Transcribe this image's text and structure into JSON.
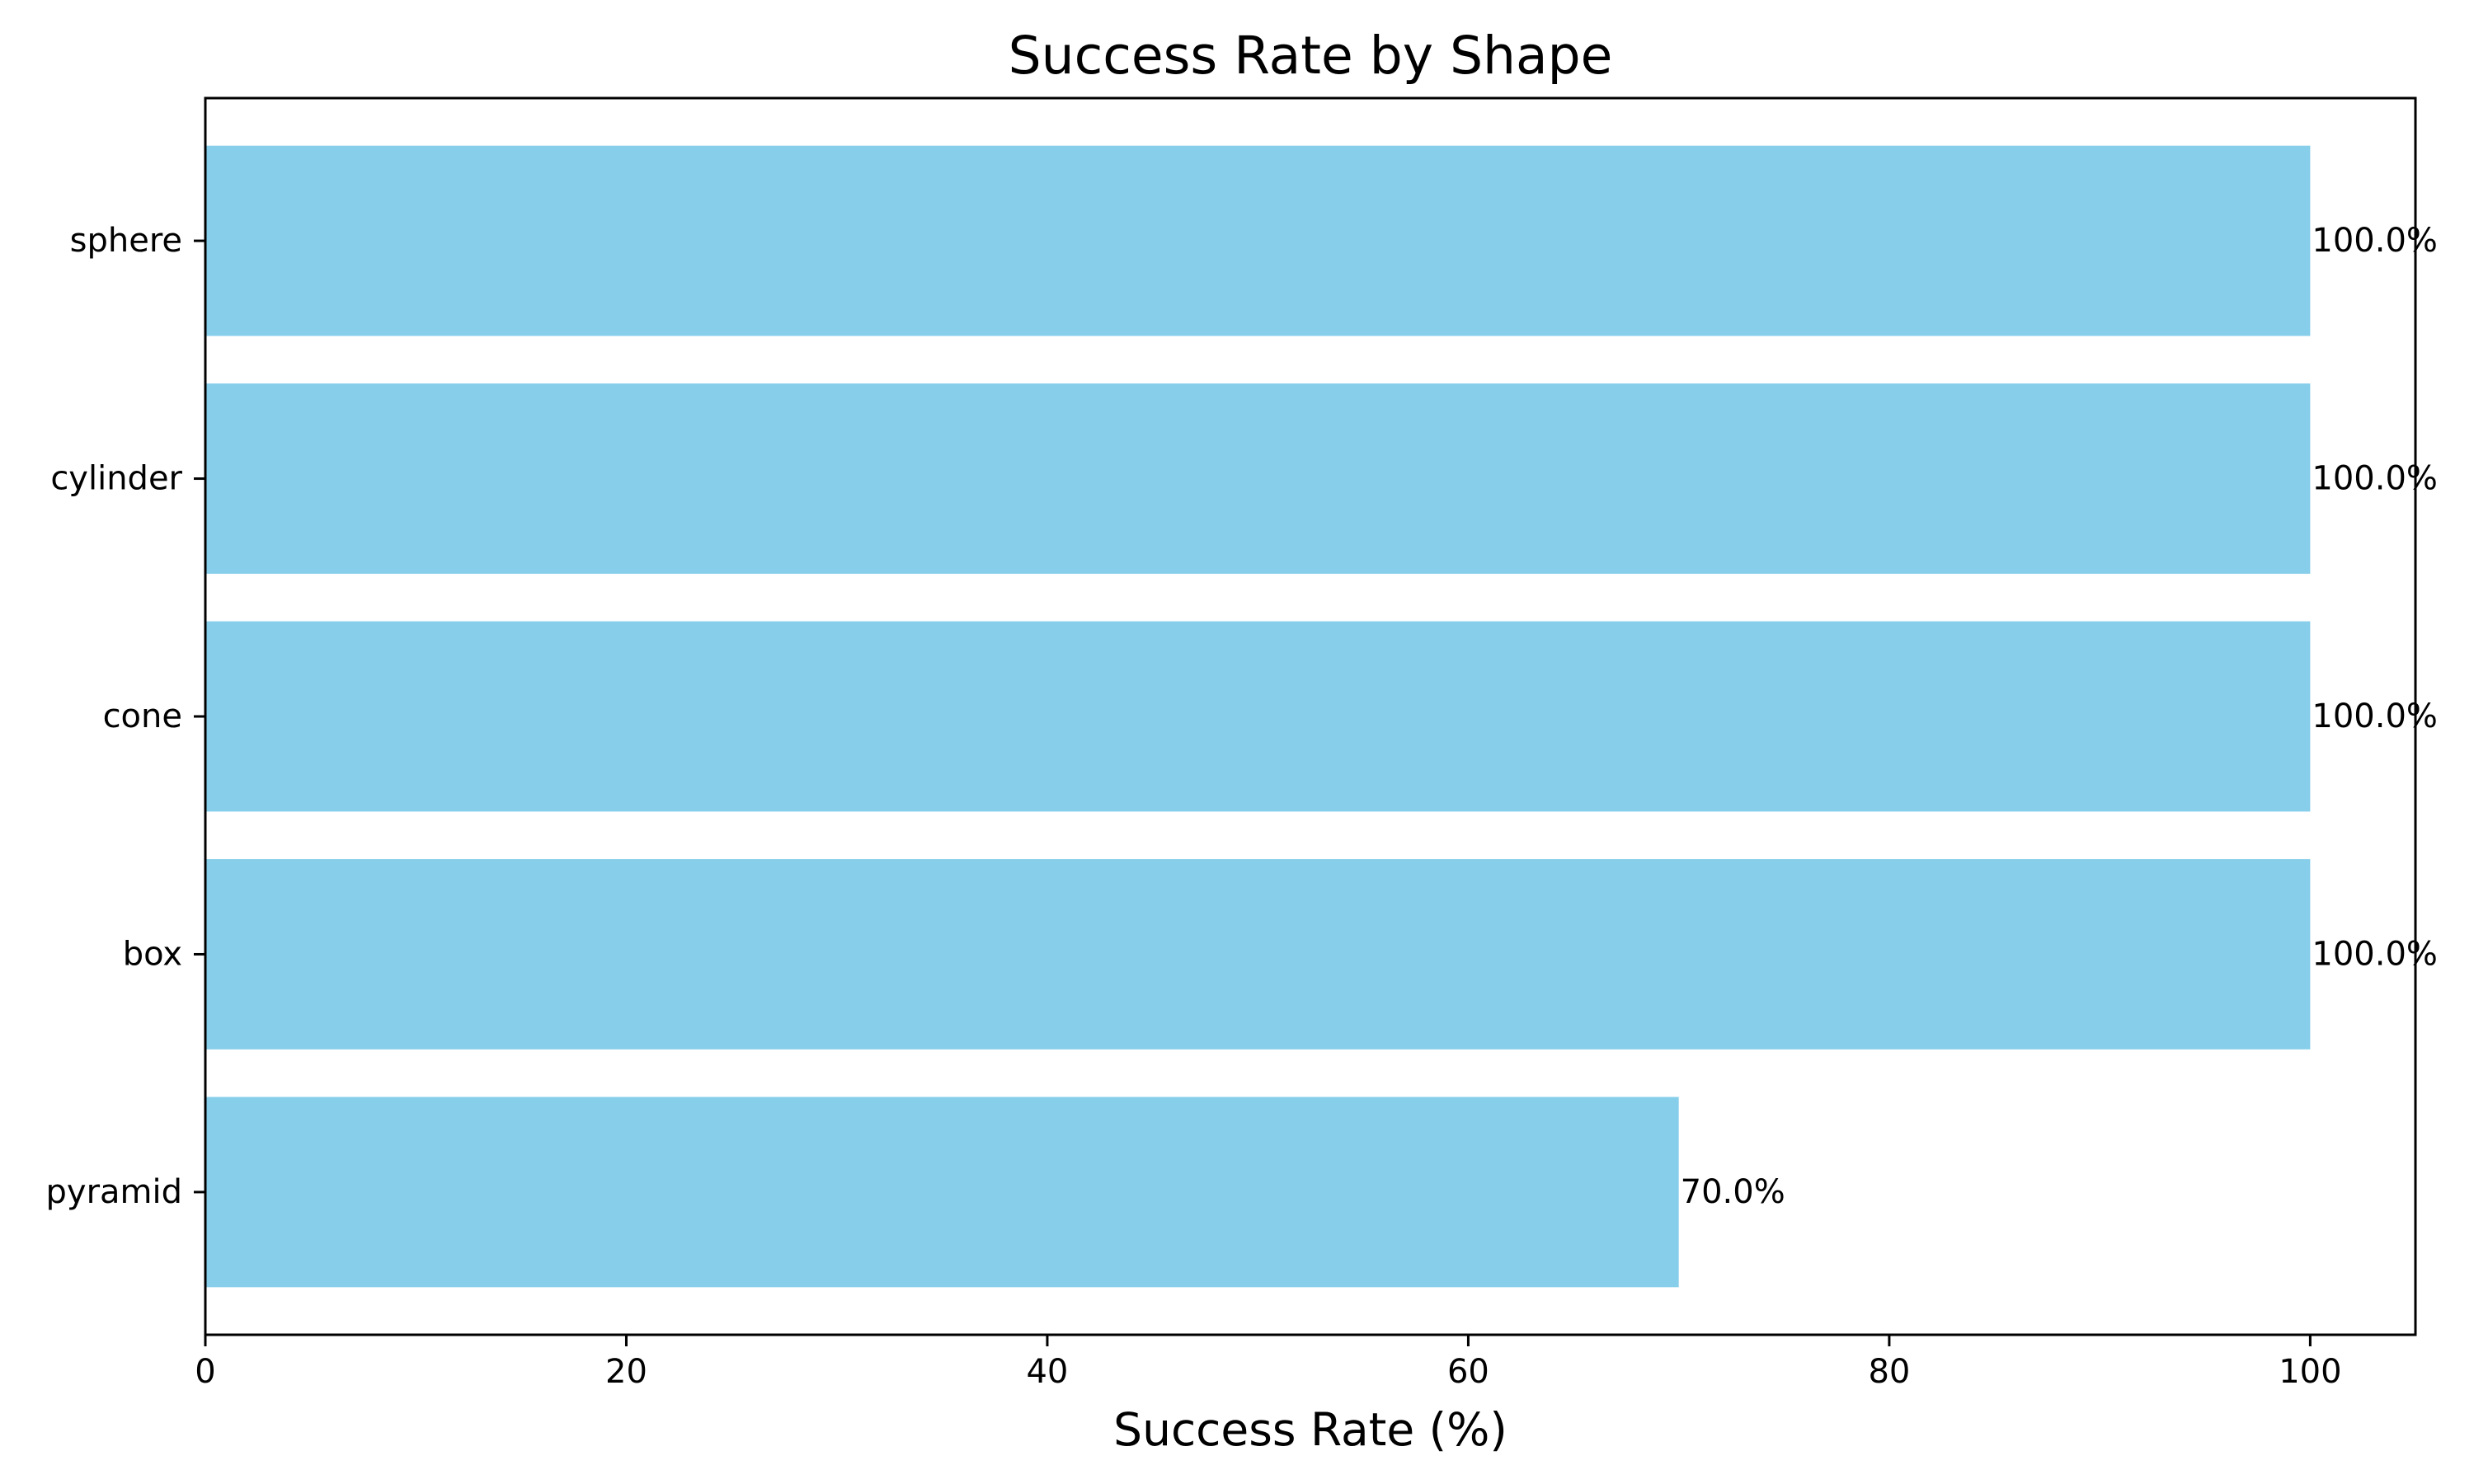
{
  "chart_data": {
    "type": "bar",
    "orientation": "horizontal",
    "title": "Success Rate by Shape",
    "xlabel": "Success Rate (%)",
    "ylabel": "",
    "categories": [
      "pyramid",
      "box",
      "cone",
      "cylinder",
      "sphere"
    ],
    "values": [
      70.0,
      100.0,
      100.0,
      100.0,
      100.0
    ],
    "value_labels": [
      "70.0%",
      "100.0%",
      "100.0%",
      "100.0%",
      "100.0%"
    ],
    "xlim": [
      0,
      105
    ],
    "xticks": [
      0,
      20,
      40,
      60,
      80,
      100
    ],
    "xtick_labels": [
      "0",
      "20",
      "40",
      "60",
      "80",
      "100"
    ],
    "bar_color": "#87ceeb",
    "grid": false,
    "legend": "none"
  }
}
